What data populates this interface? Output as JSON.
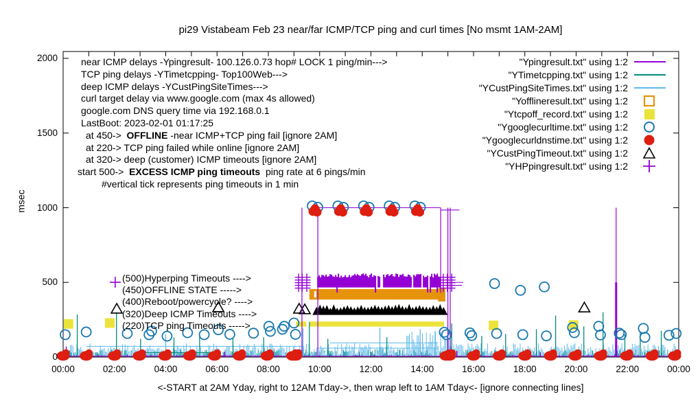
{
  "title": "pi29 Vistabeam Feb 23  near/far ICMP/TCP ping and curl times [No msmt 1AM-2AM]",
  "y_axis": {
    "label": "msec",
    "ticks": [
      0,
      500,
      1000,
      1500,
      2000
    ]
  },
  "x_axis": {
    "tick_labels": [
      "00:00",
      "02:00",
      "04:00",
      "06:00",
      "08:00",
      "10:00",
      "12:00",
      "14:00",
      "16:00",
      "18:00",
      "20:00",
      "22:00",
      "00:00"
    ],
    "label": "<-START at 2AM Yday, right to 12AM Tday->, then wrap left to 1AM Tday<- [ignore connecting lines]"
  },
  "annotations": {
    "info_lines": [
      {
        "indent": 5,
        "parts": [
          {
            "t": "near ICMP delays -Ypingresult- 100.126.0.73 hop# LOCK 1 ping/min--->"
          }
        ]
      },
      {
        "indent": 5,
        "parts": [
          {
            "t": "TCP ping delays -YTimetcpping- Top100Web--->"
          }
        ]
      },
      {
        "indent": 5,
        "parts": [
          {
            "t": "deep ICMP delays -YCustPingSiteTimes--->"
          }
        ]
      },
      {
        "indent": 5,
        "parts": [
          {
            "t": "curl target delay via www.google.com (max 4s allowed)"
          }
        ]
      },
      {
        "indent": 5,
        "parts": [
          {
            "t": "google.com DNS query time via 192.168.0.1"
          }
        ]
      },
      {
        "indent": 5,
        "parts": [
          {
            "t": "LastBoot: 2023-02-01 01:17:25"
          }
        ]
      },
      {
        "indent": 12,
        "parts": [
          {
            "t": "at 450->  "
          },
          {
            "t": "OFFLINE",
            "b": true
          },
          {
            "t": " -near ICMP+TCP ping fail [ignore 2AM]"
          }
        ]
      },
      {
        "indent": 12,
        "parts": [
          {
            "t": "at 220-> TCP ping failed while online [ignore 2AM]"
          }
        ]
      },
      {
        "indent": 12,
        "parts": [
          {
            "t": "at 320-> deep (customer) ICMP timeouts [ignore 2AM]"
          }
        ]
      },
      {
        "indent": 0,
        "parts": [
          {
            "t": "start 500->  "
          },
          {
            "t": "EXCESS ICMP ping timeouts",
            "b": true
          },
          {
            "t": "  ping rate at 6 pings/min"
          }
        ]
      },
      {
        "indent": 35,
        "parts": [
          {
            "t": "#vertical tick represents ping timeouts in 1 min"
          }
        ]
      }
    ],
    "level_labels": [
      {
        "text": "(500)Hyperping Timeouts ---->",
        "marker": {
          "type": "plus",
          "color": "#9400D3",
          "h": 2.03,
          "ms": 501
        }
      },
      {
        "text": "(450)OFFLINE STATE ----->"
      },
      {
        "text": "(400)Reboot/powercycle? ---->"
      },
      {
        "text": "(320)Deep ICMP Timeouts ---->",
        "marker": {
          "type": "open-triangle",
          "color": "#000000",
          "h": 2.09,
          "ms": 322
        }
      },
      {
        "text": "(220)TCP ping Timeouts ----->",
        "marker": {
          "type": "filled-square",
          "color": "#EBE33B",
          "h": 1.82,
          "ms": 228
        }
      }
    ]
  },
  "legend": [
    {
      "label": "\"Ypingresult.txt\" using 1:2",
      "type": "line",
      "color": "#9400D3"
    },
    {
      "label": "\"YTimetcpping.txt\" using 1:2",
      "type": "line",
      "color": "#008C7A"
    },
    {
      "label": "\"YCustPingSiteTimes.txt\" using 1:2",
      "type": "line",
      "color": "#5DB8E8"
    },
    {
      "label": "\"Yofflineresult.txt\" using 1:2",
      "type": "open-square",
      "color": "#E6930B"
    },
    {
      "label": "\"Ytcpoff_record.txt\" using 1:2",
      "type": "filled-square",
      "color": "#EBE33B"
    },
    {
      "label": "\"Ygooglecurltime.txt\" using 1:2",
      "type": "open-circle",
      "color": "#1878B0"
    },
    {
      "label": "\"Ygooglecurldnstime.txt\" using 1:2",
      "type": "filled-circle",
      "color": "#DD1E10"
    },
    {
      "label": "\"YCustPingTimeout.txt\" using 1:2",
      "type": "open-triangle",
      "color": "#000000"
    },
    {
      "label": "\"YHPpingresult.txt\" using 1:2",
      "type": "plus",
      "color": "#9400D3"
    }
  ],
  "chart_data": {
    "type": "scatter",
    "x_unit": "hour-of-day",
    "x_range": [
      0,
      24
    ],
    "y_unit": "msec",
    "y_range": [
      0,
      2000
    ],
    "y_ticks": [
      0,
      500,
      1000,
      1500,
      2000
    ],
    "grid": false,
    "legend_position": "top-right",
    "event_window": {
      "start_hour": 9.6,
      "end_hour": 14.85,
      "note": "outage: excess ICMP ping timeouts, offline state"
    },
    "series": [
      {
        "name": "Ypingresult",
        "color": "#9400D3",
        "style": "line",
        "baseline_ms": [
          2,
          16
        ],
        "spikes": [
          [
            0.12,
            72
          ],
          [
            3.2,
            42
          ],
          [
            6.3,
            36
          ],
          [
            8.2,
            32
          ],
          [
            15.35,
            42
          ],
          [
            18.6,
            32
          ],
          [
            20.0,
            36
          ],
          [
            23.0,
            30
          ]
        ],
        "impulses": [
          {
            "h": 9.31,
            "ms": 1000
          },
          {
            "h": 9.93,
            "ms": 1000
          },
          {
            "h": 14.72,
            "ms": 1000,
            "base": 430
          },
          {
            "h": 15.0,
            "ms": 1000
          },
          {
            "h": 15.09,
            "ms": 1000
          },
          {
            "h": 21.56,
            "ms": 1000,
            "thick_to": 500
          }
        ],
        "plateaus": [
          {
            "from": 9.93,
            "to": 14.72,
            "ms": 1000
          },
          {
            "from": 14.72,
            "to": 15.45,
            "ms": 985
          },
          {
            "from": 14.9,
            "to": 15.6,
            "ms": 500
          },
          {
            "from": 14.9,
            "to": 15.55,
            "ms": 480
          }
        ]
      },
      {
        "name": "YTimetcpping",
        "color": "#008C7A",
        "style": "line",
        "baseline_ms": [
          4,
          52
        ],
        "hlines": [
          {
            "from": 2.8,
            "to": 5.9,
            "ms": 30
          }
        ],
        "spikes": [
          [
            0.55,
            285
          ],
          [
            2.08,
            300
          ],
          [
            3.02,
            122
          ],
          [
            4.32,
            132
          ],
          [
            5.32,
            152
          ],
          [
            6.62,
            122
          ],
          [
            7.82,
            132
          ],
          [
            9.6,
            235
          ],
          [
            10.32,
            122
          ],
          [
            12.62,
            132
          ],
          [
            15.15,
            225
          ],
          [
            16.32,
            142
          ],
          [
            17.25,
            155
          ],
          [
            18.45,
            186
          ],
          [
            19.2,
            278
          ],
          [
            20.3,
            206
          ],
          [
            21.05,
            300
          ],
          [
            21.9,
            152
          ],
          [
            22.5,
            166
          ],
          [
            23.32,
            176
          ]
        ]
      },
      {
        "name": "YCustPingSiteTimes",
        "color": "#5DB8E8",
        "style": "line",
        "baseline_ms": [
          14,
          92
        ],
        "elevated": {
          "from": 13.35,
          "to": 15.05,
          "ms": [
            25,
            172
          ]
        },
        "hlines": [
          {
            "from": 0.9,
            "to": 9.4,
            "ms": 72
          },
          {
            "from": 9.9,
            "to": 14.6,
            "ms": 60
          },
          {
            "from": 10.4,
            "to": 14.6,
            "ms": 95
          }
        ],
        "spikes": [
          [
            4.0,
            152
          ],
          [
            9.35,
            192
          ],
          [
            12.35,
            196
          ],
          [
            13.92,
            186
          ],
          [
            14.5,
            176
          ]
        ]
      },
      {
        "name": "Yofflineresult",
        "color": "#E6930B",
        "style": "open-square",
        "band": {
          "from": 9.6,
          "to": 14.78,
          "ms": [
            385,
            455
          ]
        },
        "end_block": {
          "from": 14.62,
          "to": 14.9,
          "ms": [
            372,
            462
          ]
        }
      },
      {
        "name": "Ytcpoff_record",
        "color": "#EBE33B",
        "style": "filled-square",
        "band": {
          "from": 9.62,
          "to": 14.85,
          "ms": [
            204,
            238
          ]
        },
        "pre_segment": {
          "from": 9.08,
          "to": 9.48,
          "ms": [
            204,
            238
          ]
        },
        "points": [
          [
            0.21,
            222
          ],
          [
            16.78,
            212
          ],
          [
            19.9,
            214
          ]
        ]
      },
      {
        "name": "Ygooglecurltime",
        "color": "#1878B0",
        "style": "open-circle",
        "event_hours": [
          9.82,
          10.82,
          11.82,
          12.82,
          13.82
        ],
        "event_ms": 1012,
        "points": [
          [
            0.08,
            150
          ],
          [
            0.9,
            168
          ],
          [
            2.5,
            158
          ],
          [
            3.35,
            150
          ],
          [
            3.45,
            174
          ],
          [
            4.05,
            140
          ],
          [
            4.85,
            163
          ],
          [
            5.5,
            150
          ],
          [
            6.05,
            183
          ],
          [
            6.5,
            152
          ],
          [
            7.42,
            160
          ],
          [
            8.02,
            206
          ],
          [
            8.08,
            172
          ],
          [
            8.55,
            186
          ],
          [
            8.62,
            206
          ],
          [
            9.0,
            228
          ],
          [
            9.06,
            152
          ],
          [
            14.86,
            166
          ],
          [
            14.95,
            150
          ],
          [
            15.86,
            162
          ],
          [
            15.93,
            144
          ],
          [
            16.82,
            492
          ],
          [
            16.9,
            158
          ],
          [
            17.83,
            447
          ],
          [
            17.92,
            150
          ],
          [
            18.76,
            470
          ],
          [
            18.84,
            142
          ],
          [
            19.86,
            198
          ],
          [
            19.93,
            163
          ],
          [
            20.88,
            206
          ],
          [
            20.95,
            148
          ],
          [
            21.68,
            160
          ],
          [
            21.76,
            150
          ],
          [
            22.62,
            192
          ],
          [
            22.68,
            132
          ],
          [
            23.62,
            146
          ],
          [
            23.9,
            158
          ]
        ]
      },
      {
        "name": "Ygooglecurldnstime",
        "color": "#DD1E10",
        "style": "filled-circle",
        "event_hours": [
          9.82,
          10.82,
          11.82,
          12.82,
          13.82
        ],
        "event_ms": 975,
        "zero_hours": [
          0.0,
          0.9,
          2.0,
          2.97,
          3.97,
          4.93,
          5.9,
          6.87,
          7.95,
          8.95,
          9.07,
          14.93,
          15.06,
          16.0,
          17.0,
          18.0,
          19.0,
          19.96,
          20.95,
          21.97,
          22.96,
          23.84
        ],
        "zero_ms": 8
      },
      {
        "name": "YCustPingTimeout",
        "color": "#000000",
        "style": "open-triangle",
        "band": {
          "from": 9.72,
          "to": 14.8,
          "ms": [
            282,
            330
          ]
        },
        "points": [
          [
            6.05,
            332
          ],
          [
            9.2,
            322
          ],
          [
            9.42,
            318
          ],
          [
            20.32,
            330
          ]
        ]
      },
      {
        "name": "YHPpingresult",
        "color": "#9400D3",
        "style": "plus",
        "band": {
          "from": 9.93,
          "to": 14.72,
          "ms": [
            466,
            560
          ]
        },
        "ladders": [
          9.18,
          9.32,
          9.5,
          14.82,
          14.98,
          15.15
        ],
        "ladder_ms": [
          462,
          480,
          498,
          516,
          534
        ]
      }
    ]
  }
}
